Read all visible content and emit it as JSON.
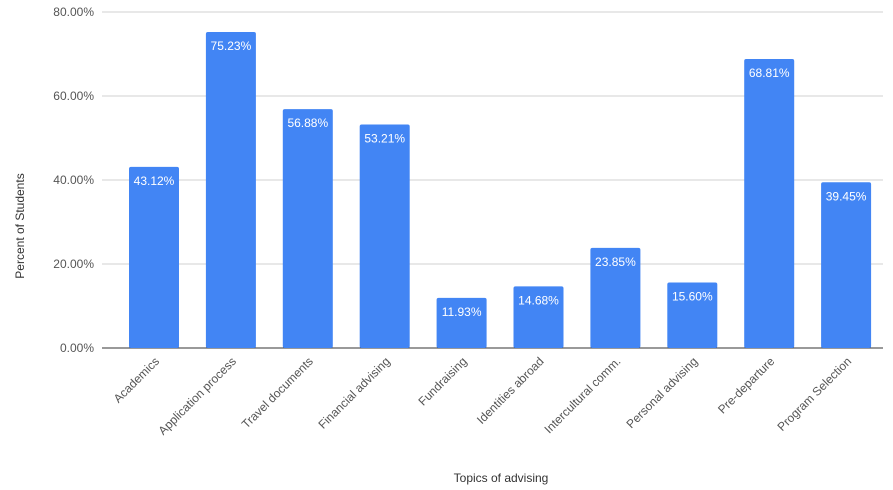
{
  "chart_data": {
    "type": "bar",
    "title": "",
    "xlabel": "Topics of advising",
    "ylabel": "Percent of Students",
    "ylim": [
      0,
      80
    ],
    "yticks": [
      0,
      20,
      40,
      60,
      80
    ],
    "ytick_labels": [
      "0.00%",
      "20.00%",
      "40.00%",
      "60.00%",
      "80.00%"
    ],
    "grid": true,
    "legend": "none",
    "bar_color": "#4285f4",
    "categories": [
      "Academics",
      "Application process",
      "Travel documents",
      "Financial advising",
      "Fundraising",
      "Identities abroad",
      "Intercultural comm.",
      "Personal advising",
      "Pre-departure",
      "Program Selection"
    ],
    "values": [
      43.12,
      75.23,
      56.88,
      53.21,
      11.93,
      14.68,
      23.85,
      15.6,
      68.81,
      39.45
    ],
    "value_labels": [
      "43.12%",
      "75.23%",
      "56.88%",
      "53.21%",
      "11.93%",
      "14.68%",
      "23.85%",
      "15.60%",
      "68.81%",
      "39.45%"
    ]
  }
}
